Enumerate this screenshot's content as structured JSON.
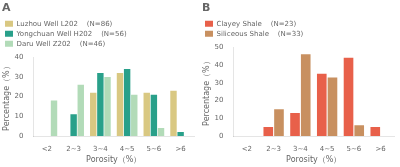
{
  "chart_data": [
    {
      "type": "bar",
      "title": "A",
      "categories": [
        "<2",
        "2~3",
        "3~4",
        "4~5",
        "5~6",
        ">6"
      ],
      "xlabel": "Porosity（%）",
      "ylabel": "Percentage（%）",
      "ylim": [
        0,
        40
      ],
      "yticks": [
        0,
        10,
        20,
        30,
        40
      ],
      "grid": false,
      "legend": "upper left",
      "series": [
        {
          "name": "Luzhou Well L202    (N=86)",
          "color": "#d9c882",
          "values": [
            0,
            0,
            22,
            32,
            22,
            23
          ]
        },
        {
          "name": "Yongchuan Well H202    (N=56)",
          "color": "#29a08a",
          "values": [
            0,
            11,
            32,
            34,
            21,
            2
          ]
        },
        {
          "name": "Daru Well Z202    (N=46)",
          "color": "#b2dbb8",
          "values": [
            18,
            26,
            30,
            21,
            4,
            0
          ]
        }
      ]
    },
    {
      "type": "bar",
      "title": "B",
      "categories": [
        "<2",
        "2~3",
        "3~4",
        "4~5",
        "5~6",
        ">6"
      ],
      "xlabel": "Porosity（%）",
      "ylabel": "Percentage（%）",
      "ylim": [
        0,
        50
      ],
      "yticks": [
        0,
        10,
        20,
        30,
        40,
        50
      ],
      "grid": false,
      "legend": "upper left",
      "series": [
        {
          "name": "Clayey Shale    (N=23)",
          "color": "#e8604a",
          "values": [
            0,
            5,
            13,
            35,
            44,
            5
          ]
        },
        {
          "name": "Siliceous Shale    (N=33)",
          "color": "#c89060",
          "values": [
            0,
            15,
            46,
            33,
            6,
            0
          ]
        }
      ]
    }
  ]
}
